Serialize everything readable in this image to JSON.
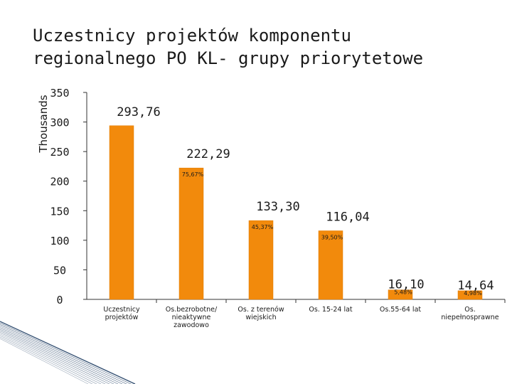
{
  "title_lines": [
    "Uczestnicy projektów  komponentu",
    "regionalnego PO KL- grupy priorytetowe"
  ],
  "colors": {
    "bar": "#f28a0c",
    "bar_edge": "#e07a00",
    "axis": "#333333",
    "deco": "#17375e"
  },
  "chart_data": {
    "type": "bar",
    "title": "Uczestnicy projektów  komponentu regionalnego PO KL- grupy priorytetowe",
    "ylabel": "Thousands",
    "xlabel": "",
    "ylim": [
      0,
      350
    ],
    "yticks": [
      "0",
      "50",
      "100",
      "150",
      "200",
      "250",
      "300",
      "350"
    ],
    "yticks_values": [
      0,
      50,
      100,
      150,
      200,
      250,
      300,
      350
    ],
    "grid": false,
    "categories": [
      [
        "Uczestnicy",
        "projektów"
      ],
      [
        "Os.bezrobotne/",
        "nieaktywne",
        "zawodowo"
      ],
      [
        "Os. z terenów",
        "wiejskich"
      ],
      [
        "Os. 15-24 lat"
      ],
      [
        "Os.55-64 lat"
      ],
      [
        "Os.",
        "niepełnosprawne"
      ]
    ],
    "values": [
      293.76,
      222.29,
      133.3,
      116.04,
      16.1,
      14.64
    ],
    "data_labels": [
      "293,76",
      "222,29",
      "133,30",
      "116,04",
      "16,10",
      "14,64"
    ],
    "percent_labels": [
      "",
      "75,67%",
      "45,37%",
      "39,50%",
      "5,48%",
      "4,98%"
    ]
  }
}
